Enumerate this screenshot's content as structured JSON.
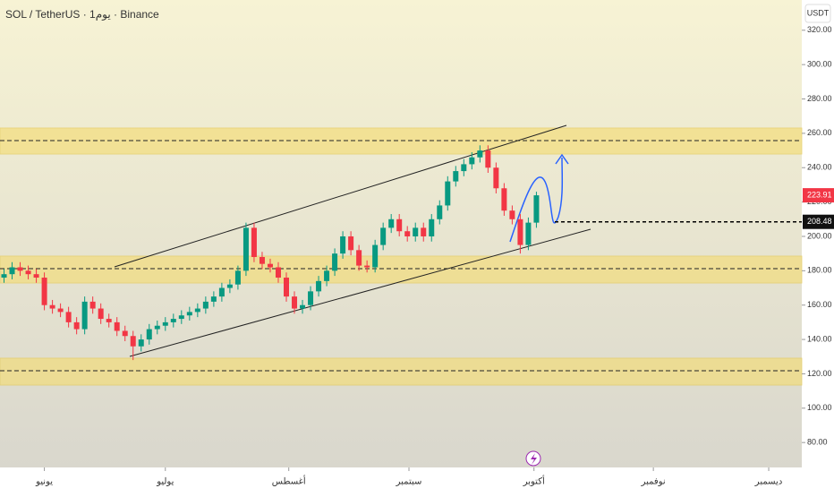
{
  "chart_data": {
    "type": "candlestick",
    "title": "SOL / TetherUS · 1يوم · Binance",
    "y_axis_label": "USDT",
    "open": [
      176,
      178,
      182,
      180,
      178,
      176,
      160,
      158,
      156,
      150,
      146,
      162,
      158,
      152,
      150,
      145,
      142,
      136,
      140,
      146,
      148,
      150,
      152,
      154,
      156,
      158,
      162,
      165,
      170,
      172,
      180,
      205,
      188,
      184,
      182,
      176,
      165,
      158,
      160,
      168,
      174,
      180,
      190,
      200,
      192,
      183,
      182,
      195,
      205,
      210,
      203,
      200,
      205,
      200,
      210,
      218,
      232,
      238,
      242,
      246,
      250,
      240,
      228,
      215,
      210,
      195,
      208
    ],
    "high": [
      181,
      185,
      185,
      183,
      181,
      179,
      163,
      161,
      159,
      153,
      165,
      165,
      161,
      155,
      153,
      148,
      145,
      143,
      149,
      151,
      153,
      155,
      157,
      159,
      161,
      165,
      168,
      173,
      175,
      183,
      208,
      208,
      191,
      187,
      185,
      179,
      168,
      163,
      171,
      177,
      183,
      193,
      203,
      203,
      195,
      186,
      198,
      208,
      213,
      213,
      206,
      208,
      208,
      213,
      221,
      235,
      241,
      245,
      249,
      253,
      253,
      243,
      231,
      218,
      213,
      211,
      226
    ],
    "low": [
      173,
      175,
      177,
      175,
      173,
      157,
      155,
      153,
      147,
      143,
      143,
      155,
      149,
      147,
      142,
      139,
      128,
      133,
      137,
      143,
      145,
      147,
      149,
      151,
      153,
      155,
      159,
      162,
      167,
      169,
      177,
      185,
      181,
      179,
      173,
      162,
      155,
      155,
      157,
      165,
      171,
      177,
      187,
      189,
      180,
      179,
      179,
      192,
      202,
      200,
      197,
      197,
      197,
      197,
      207,
      215,
      229,
      235,
      239,
      243,
      237,
      225,
      212,
      207,
      190,
      192,
      205
    ],
    "close": [
      178,
      182,
      180,
      178,
      176,
      160,
      158,
      156,
      150,
      146,
      162,
      158,
      152,
      150,
      145,
      142,
      136,
      140,
      146,
      148,
      150,
      152,
      154,
      156,
      158,
      162,
      165,
      170,
      172,
      180,
      205,
      188,
      184,
      182,
      176,
      165,
      158,
      160,
      168,
      174,
      180,
      190,
      200,
      192,
      183,
      182,
      195,
      205,
      210,
      203,
      200,
      205,
      200,
      210,
      218,
      232,
      238,
      242,
      246,
      250,
      240,
      228,
      215,
      210,
      195,
      208,
      223.91
    ],
    "up_color": "#089981",
    "down_color": "#f23645",
    "xlim": [
      -0.5,
      98.9
    ],
    "xticks": [
      {
        "value": 5,
        "label": "يونيو"
      },
      {
        "value": 20,
        "label": "يوليو"
      },
      {
        "value": 35.3,
        "label": "أغسطس"
      },
      {
        "value": 50.2,
        "label": "سبتمبر"
      },
      {
        "value": 65.7,
        "label": "أكتوبر"
      },
      {
        "value": 80.5,
        "label": "نوفمبر"
      },
      {
        "value": 94.8,
        "label": "ديسمبر"
      }
    ],
    "ylim": [
      65.5,
      337.6
    ],
    "yticks": [
      {
        "value": 80,
        "label": "80.00"
      },
      {
        "value": 100,
        "label": "100.00"
      },
      {
        "value": 120,
        "label": "120.00"
      },
      {
        "value": 140,
        "label": "140.00"
      },
      {
        "value": 160,
        "label": "160.00"
      },
      {
        "value": 180,
        "label": "180.00"
      },
      {
        "value": 200,
        "label": "200.00"
      },
      {
        "value": 220,
        "label": "220.00"
      },
      {
        "value": 240,
        "label": "240.00"
      },
      {
        "value": 260,
        "label": "260.00"
      },
      {
        "value": 280,
        "label": "280.00"
      },
      {
        "value": 300,
        "label": "300.00"
      },
      {
        "value": 320,
        "label": "320.00"
      }
    ],
    "last_price": 223.91,
    "level_price": 208.48
  }
}
